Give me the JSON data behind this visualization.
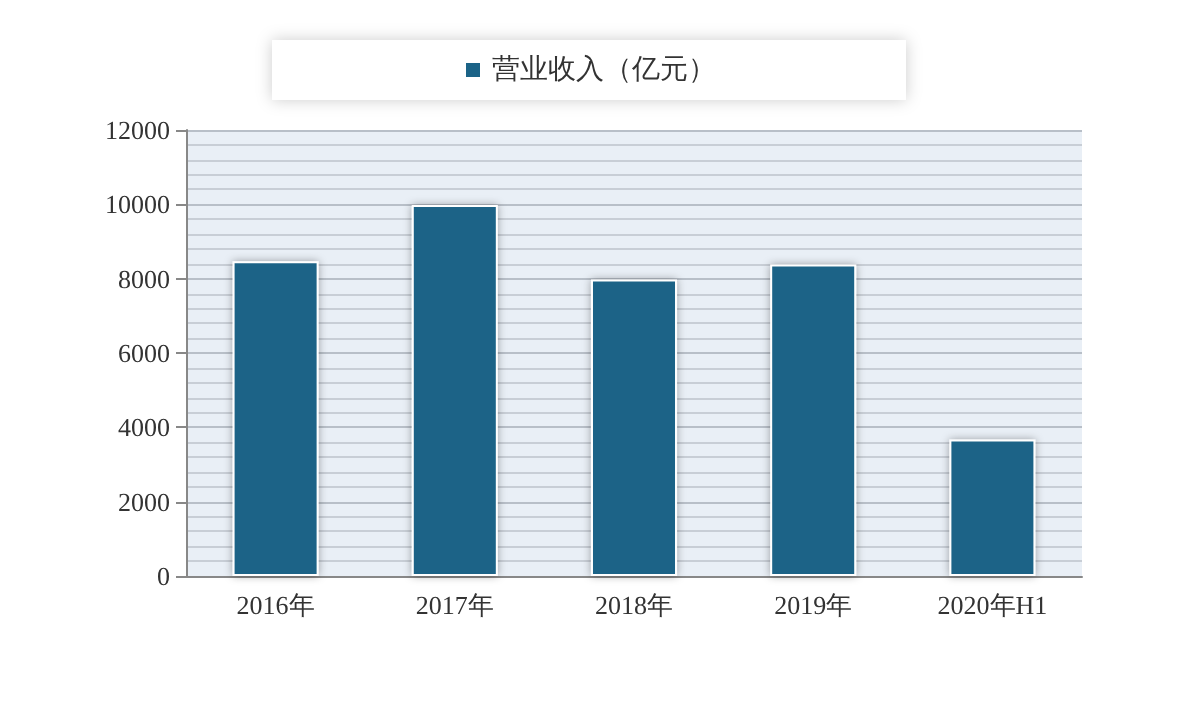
{
  "chart_data": {
    "type": "bar",
    "categories": [
      "2016年",
      "2017年",
      "2018年",
      "2019年",
      "2020年H1"
    ],
    "series": [
      {
        "name": "营业收入（亿元）",
        "color": "#1b6387",
        "values": [
          8470,
          9980,
          7980,
          8380,
          3670
        ]
      }
    ],
    "ylim": [
      0,
      12000
    ],
    "yticks": [
      0,
      2000,
      4000,
      6000,
      8000,
      10000,
      12000
    ],
    "grid": "y",
    "legend": "top"
  }
}
